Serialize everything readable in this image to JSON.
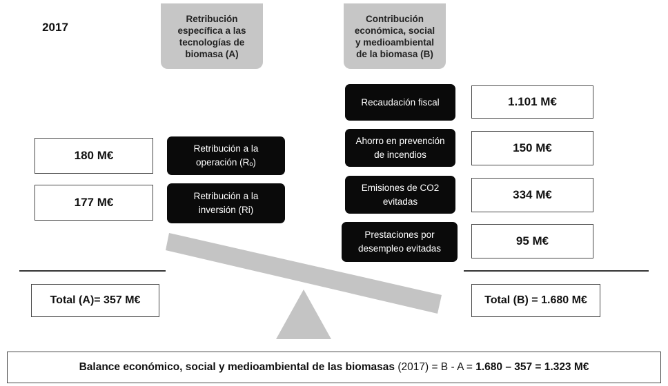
{
  "year": "2017",
  "header_a": "Retribución específica a las tecnologías de biomasa (A)",
  "header_b": "Contribución económica, social y medioambiental de la biomasa (B)",
  "left_items": [
    {
      "value": "180 M€",
      "label": "Retribución a la operación (Rₒ)"
    },
    {
      "value": "177 M€",
      "label": "Retribución a la inversión (Ri)"
    }
  ],
  "right_items": [
    {
      "label": "Recaudación fiscal",
      "value": "1.101 M€"
    },
    {
      "label": "Ahorro en prevención de incendios",
      "value": "150 M€"
    },
    {
      "label": "Emisiones de CO2 evitadas",
      "value": "334 M€"
    },
    {
      "label": "Prestaciones por desempleo evitadas",
      "value": "95 M€"
    }
  ],
  "total_a": "Total (A)= 357 M€",
  "total_b": "Total (B) = 1.680 M€",
  "balance": [
    {
      "text": "Balance económico, social y medioambiental de las biomasas",
      "bold": true
    },
    {
      "text": " (2017) = B - A = ",
      "bold": false
    },
    {
      "text": "1.680 – 357 = 1.323 M€",
      "bold": true
    }
  ]
}
